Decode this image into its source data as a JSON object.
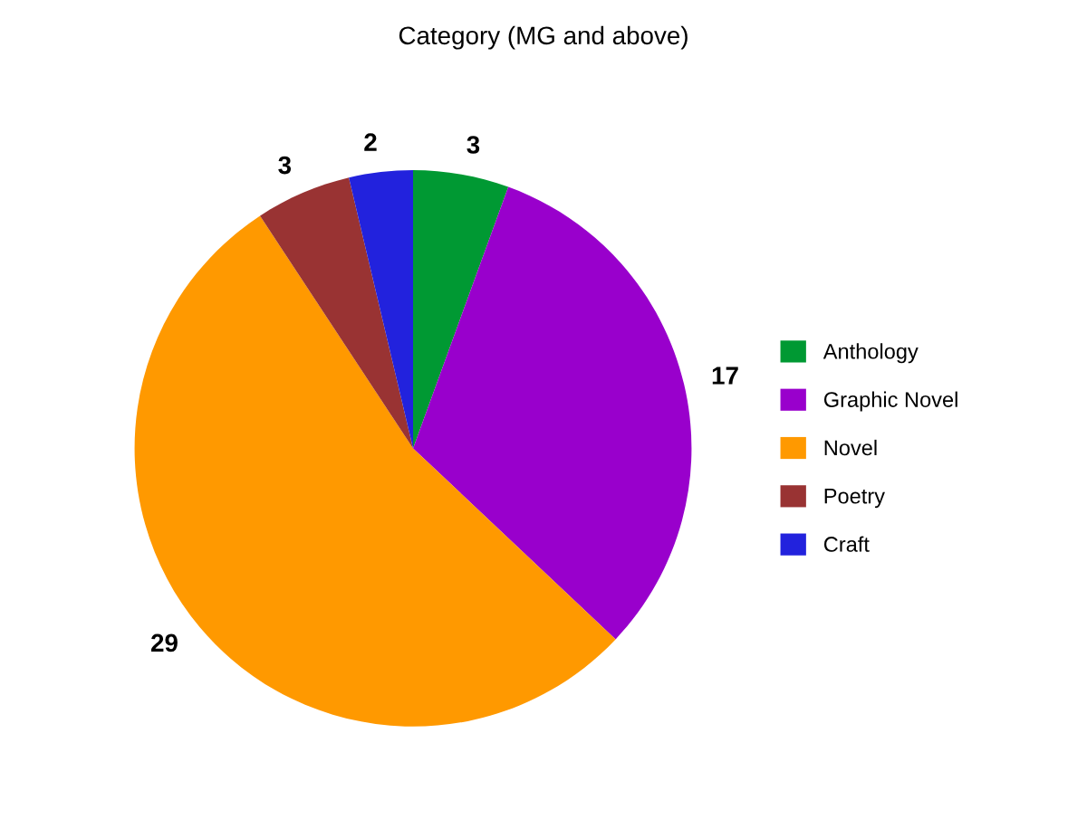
{
  "chart_data": {
    "type": "pie",
    "title": "Category (MG and above)",
    "categories": [
      "Anthology",
      "Graphic Novel",
      "Novel",
      "Poetry",
      "Craft"
    ],
    "values": [
      3,
      17,
      29,
      3,
      2
    ],
    "colors": [
      "#009933",
      "#9900cc",
      "#ff9900",
      "#993333",
      "#2222dd"
    ],
    "data_labels": true,
    "legend": "right"
  }
}
